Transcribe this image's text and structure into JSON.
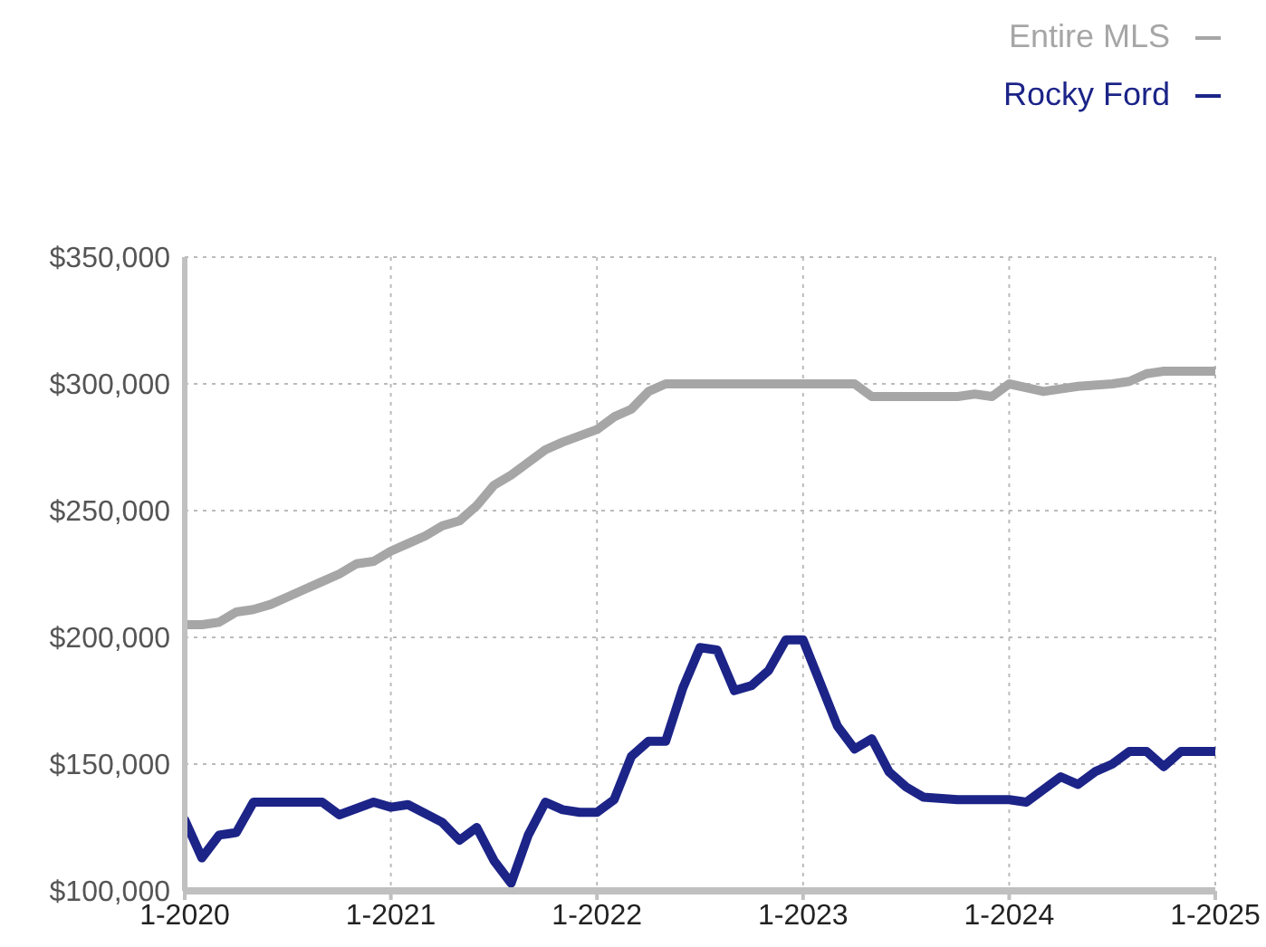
{
  "chart_data": {
    "type": "line",
    "xlim": [
      "2020-01",
      "2025-01"
    ],
    "xticks": [
      {
        "value": "2020-01",
        "label": "1-2020"
      },
      {
        "value": "2021-01",
        "label": "1-2021"
      },
      {
        "value": "2022-01",
        "label": "1-2022"
      },
      {
        "value": "2023-01",
        "label": "1-2023"
      },
      {
        "value": "2024-01",
        "label": "1-2024"
      },
      {
        "value": "2025-01",
        "label": "1-2025"
      }
    ],
    "ylim": [
      100000,
      350000
    ],
    "yticks": [
      {
        "value": 100000,
        "label": "$100,000"
      },
      {
        "value": 150000,
        "label": "$150,000"
      },
      {
        "value": 200000,
        "label": "$200,000"
      },
      {
        "value": 250000,
        "label": "$250,000"
      },
      {
        "value": 300000,
        "label": "$300,000"
      },
      {
        "value": 350000,
        "label": "$350,000"
      }
    ],
    "grid": true,
    "legend": "top right",
    "marker": "none",
    "line_style": "solid",
    "series": [
      {
        "name": "Entire MLS",
        "color": "#a6a6a6",
        "x": [
          "2020-01",
          "2020-02",
          "2020-03",
          "2020-04",
          "2020-05",
          "2020-06",
          "2020-07",
          "2020-08",
          "2020-09",
          "2020-10",
          "2020-11",
          "2020-12",
          "2021-01",
          "2021-02",
          "2021-03",
          "2021-04",
          "2021-05",
          "2021-06",
          "2021-07",
          "2021-08",
          "2021-09",
          "2021-10",
          "2021-11",
          "2022-01",
          "2022-02",
          "2022-03",
          "2022-04",
          "2022-05",
          "2022-10",
          "2023-04",
          "2023-05",
          "2023-10",
          "2023-11",
          "2023-12",
          "2024-01",
          "2024-03",
          "2024-05",
          "2024-07",
          "2024-08",
          "2024-09",
          "2024-10",
          "2025-01"
        ],
        "values": [
          205000,
          205000,
          206000,
          210000,
          211000,
          213000,
          216000,
          219000,
          222000,
          225000,
          229000,
          230000,
          234000,
          237000,
          240000,
          244000,
          246000,
          252000,
          260000,
          264000,
          269000,
          274000,
          277000,
          282000,
          287000,
          290000,
          297000,
          300000,
          300000,
          300000,
          295000,
          295000,
          296000,
          295000,
          300000,
          297000,
          299000,
          300000,
          301000,
          304000,
          305000,
          305000
        ]
      },
      {
        "name": "Rocky Ford",
        "color": "#1c2488",
        "x": [
          "2020-01",
          "2020-02",
          "2020-03",
          "2020-04",
          "2020-05",
          "2020-06",
          "2020-07",
          "2020-09",
          "2020-10",
          "2020-12",
          "2021-01",
          "2021-02",
          "2021-04",
          "2021-05",
          "2021-06",
          "2021-07",
          "2021-08",
          "2021-09",
          "2021-10",
          "2021-11",
          "2021-12",
          "2022-01",
          "2022-02",
          "2022-03",
          "2022-04",
          "2022-05",
          "2022-06",
          "2022-07",
          "2022-08",
          "2022-09",
          "2022-10",
          "2022-11",
          "2022-12",
          "2023-01",
          "2023-02",
          "2023-03",
          "2023-04",
          "2023-05",
          "2023-06",
          "2023-07",
          "2023-08",
          "2023-10",
          "2024-01",
          "2024-02",
          "2024-03",
          "2024-04",
          "2024-05",
          "2024-06",
          "2024-07",
          "2024-08",
          "2024-09",
          "2024-10",
          "2024-11",
          "2025-01"
        ],
        "values": [
          128000,
          113000,
          122000,
          123000,
          135000,
          135000,
          135000,
          135000,
          130000,
          135000,
          133000,
          134000,
          127000,
          120000,
          125000,
          112000,
          103000,
          122000,
          135000,
          132000,
          131000,
          131000,
          136000,
          153000,
          159000,
          159000,
          180000,
          196000,
          195000,
          179000,
          181000,
          187000,
          199000,
          199000,
          182000,
          165000,
          156000,
          160000,
          147000,
          141000,
          137000,
          136000,
          136000,
          135000,
          140000,
          145000,
          142000,
          147000,
          150000,
          155000,
          155000,
          149000,
          155000,
          155000
        ]
      }
    ]
  }
}
